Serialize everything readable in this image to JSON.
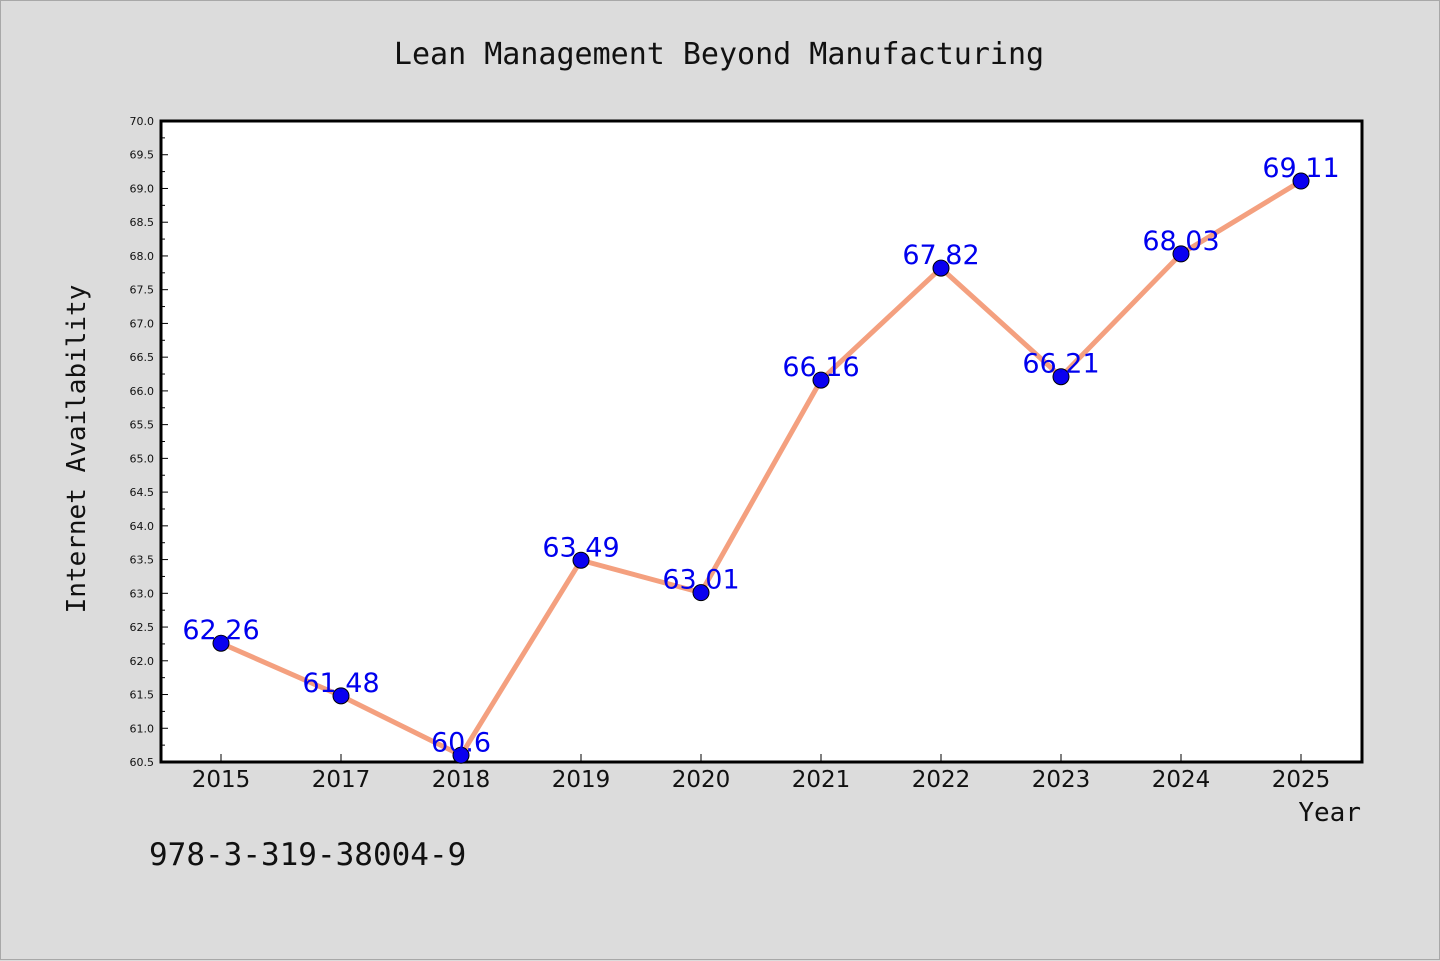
{
  "chart_data": {
    "type": "line",
    "title": "Lean Management Beyond Manufacturing",
    "xlabel": "Year",
    "ylabel": "Internet Availability",
    "categories": [
      "2015",
      "2017",
      "2018",
      "2019",
      "2020",
      "2021",
      "2022",
      "2023",
      "2024",
      "2025"
    ],
    "series": [
      {
        "values": [
          62.26,
          61.48,
          60.6,
          63.49,
          63.01,
          66.16,
          67.82,
          66.21,
          68.03,
          69.11
        ],
        "labels": [
          "62.26",
          "61.48",
          "60.6",
          "63.49",
          "63.01",
          "66.16",
          "67.82",
          "66.21",
          "68.03",
          "69.11"
        ]
      }
    ],
    "ylim": [
      60.5,
      70.0
    ],
    "yticks": [
      "60.5",
      "61.0",
      "61.5",
      "62.0",
      "62.5",
      "63.0",
      "63.5",
      "64.0",
      "64.5",
      "65.0",
      "65.5",
      "66.0",
      "66.5",
      "67.0",
      "67.5",
      "68.0",
      "68.5",
      "69.0",
      "69.5",
      "70.0"
    ],
    "grid": false,
    "colors": {
      "line": "#f4a07f",
      "marker": "#0a00f0",
      "label": "#0000ee",
      "background": "#dcdcdc",
      "plot_background": "#ffffff"
    }
  },
  "footer": {
    "isbn": "978-3-319-38004-9"
  }
}
